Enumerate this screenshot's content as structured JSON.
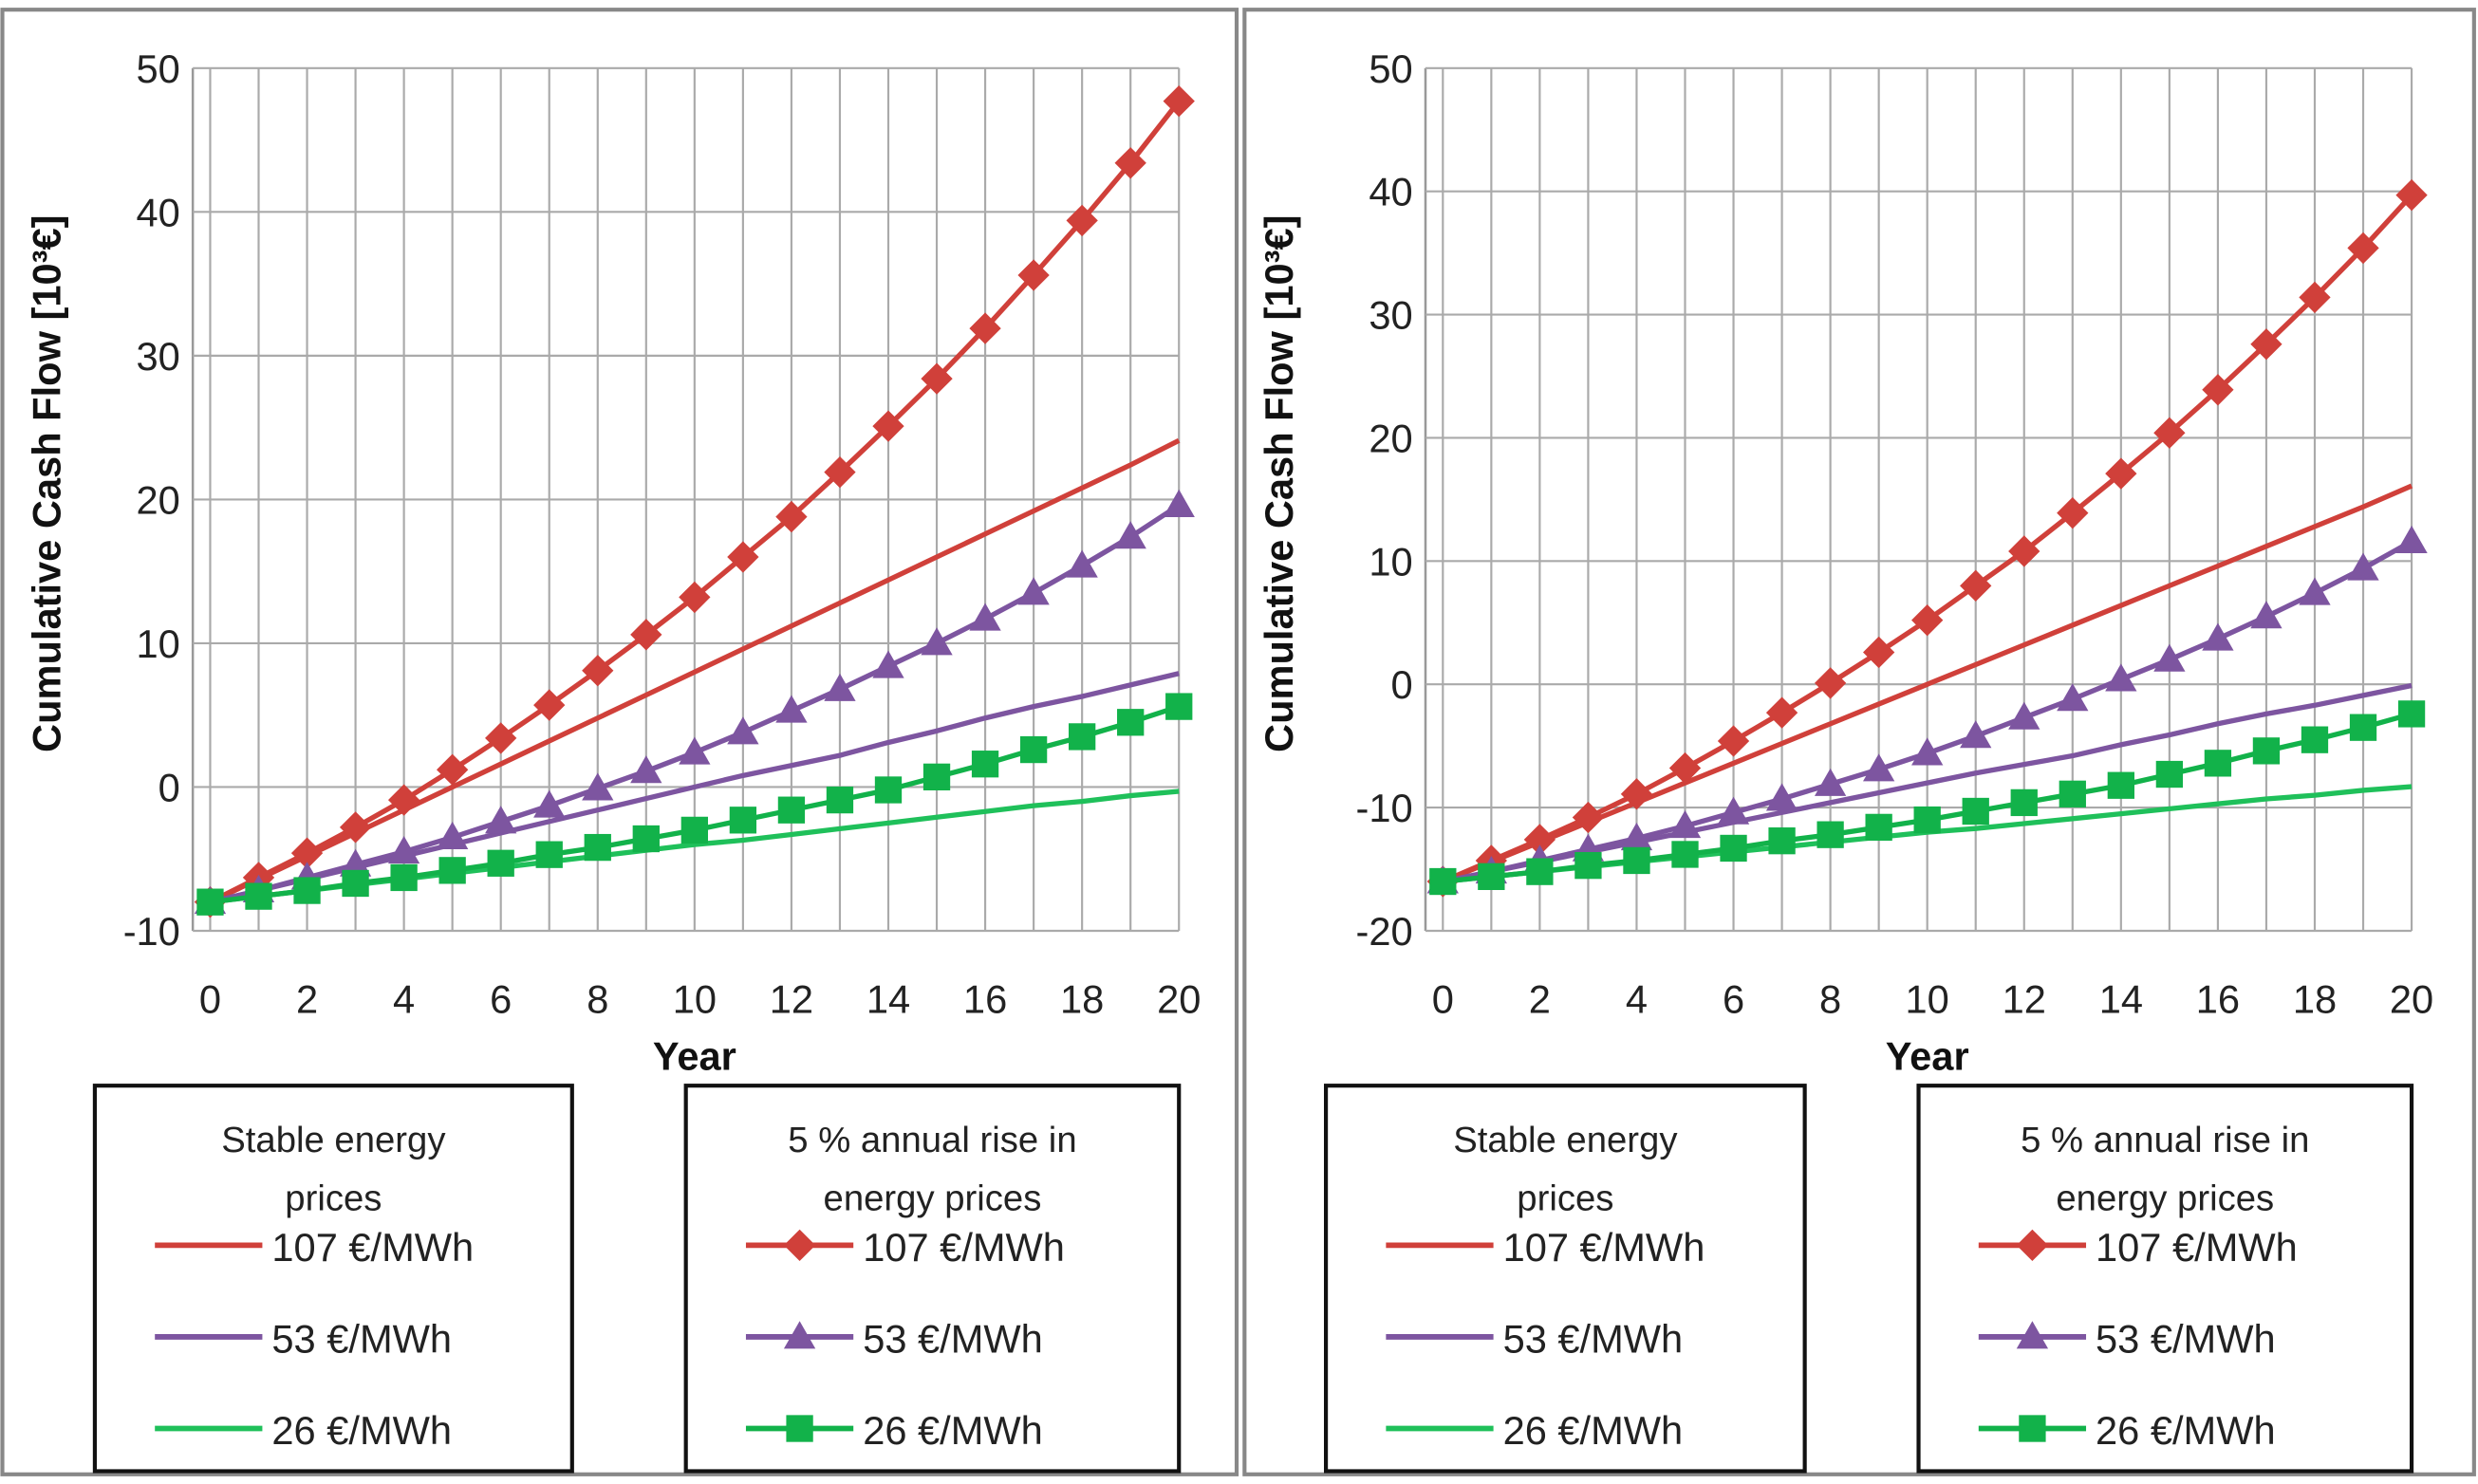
{
  "chart_data": [
    {
      "type": "line",
      "xlabel": "Year",
      "ylabel": "Cumulative Cash Flow [10³€]",
      "xlim": [
        0,
        20
      ],
      "ylim": [
        -10,
        50
      ],
      "xticks": [
        "0",
        "2",
        "4",
        "6",
        "8",
        "10",
        "12",
        "14",
        "16",
        "18",
        "20"
      ],
      "yticks": [
        "-10",
        "0",
        "10",
        "20",
        "30",
        "40",
        "50"
      ],
      "ytick_values": [
        -10,
        0,
        10,
        20,
        30,
        40,
        50
      ],
      "grid": true,
      "x": [
        0,
        1,
        2,
        3,
        4,
        5,
        6,
        7,
        8,
        9,
        10,
        11,
        12,
        13,
        14,
        15,
        16,
        17,
        18,
        19,
        20
      ],
      "legend_groups": [
        {
          "title_line1": "Stable energy",
          "title_line2": "prices"
        },
        {
          "title_line1": "5 % annual rise in",
          "title_line2": "energy prices"
        }
      ],
      "series": [
        {
          "name": "107 €/MWh",
          "group": 0,
          "color": "#d0403a",
          "marker": "none",
          "values": [
            -8,
            -6.4,
            -4.8,
            -3.2,
            -1.6,
            0,
            1.6,
            3.2,
            4.8,
            6.4,
            8,
            9.6,
            11.2,
            12.8,
            14.4,
            16,
            17.6,
            19.2,
            20.8,
            22.4,
            24.1
          ]
        },
        {
          "name": "53 €/MWh",
          "group": 0,
          "color": "#7d55a0",
          "marker": "none",
          "values": [
            -8,
            -7.2,
            -6.4,
            -5.6,
            -4.8,
            -4,
            -3.2,
            -2.4,
            -1.6,
            -0.8,
            0,
            0.8,
            1.5,
            2.2,
            3.1,
            3.9,
            4.8,
            5.6,
            6.3,
            7.1,
            7.9
          ]
        },
        {
          "name": "26 €/MWh",
          "group": 0,
          "color": "#1fc05a",
          "marker": "none",
          "values": [
            -8,
            -7.6,
            -7.2,
            -6.8,
            -6.4,
            -6,
            -5.6,
            -5.2,
            -4.8,
            -4.4,
            -4,
            -3.7,
            -3.3,
            -2.9,
            -2.5,
            -2.1,
            -1.7,
            -1.3,
            -1,
            -0.6,
            -0.3
          ]
        },
        {
          "name": "107 €/MWh",
          "group": 1,
          "color": "#d0403a",
          "marker": "diamond",
          "values": [
            -8,
            -6.3,
            -4.6,
            -2.8,
            -0.9,
            1.2,
            3.4,
            5.7,
            8.1,
            10.6,
            13.2,
            16,
            18.8,
            21.9,
            25.1,
            28.4,
            31.9,
            35.6,
            39.4,
            43.4,
            47.7
          ]
        },
        {
          "name": "53 €/MWh",
          "group": 1,
          "color": "#7d55a0",
          "marker": "triangle",
          "values": [
            -8,
            -7.2,
            -6.3,
            -5.4,
            -4.5,
            -3.5,
            -2.4,
            -1.3,
            -0.1,
            1.1,
            2.4,
            3.8,
            5.3,
            6.8,
            8.4,
            10,
            11.7,
            13.5,
            15.4,
            17.4,
            19.6
          ]
        },
        {
          "name": "26 €/MWh",
          "group": 1,
          "color": "#12b24a",
          "marker": "square",
          "values": [
            -8,
            -7.6,
            -7.2,
            -6.7,
            -6.3,
            -5.8,
            -5.3,
            -4.7,
            -4.2,
            -3.6,
            -3,
            -2.3,
            -1.6,
            -0.9,
            -0.2,
            0.7,
            1.6,
            2.6,
            3.5,
            4.5,
            5.6
          ]
        }
      ]
    },
    {
      "type": "line",
      "xlabel": "Year",
      "ylabel": "Cumulative Cash Flow [10³€]",
      "xlim": [
        0,
        20
      ],
      "ylim": [
        -20,
        50
      ],
      "xticks": [
        "0",
        "2",
        "4",
        "6",
        "8",
        "10",
        "12",
        "14",
        "16",
        "18",
        "20"
      ],
      "yticks": [
        "-20",
        "-10",
        "0",
        "10",
        "20",
        "30",
        "40",
        "50"
      ],
      "ytick_values": [
        -20,
        -10,
        0,
        10,
        20,
        30,
        40,
        50
      ],
      "grid": true,
      "x": [
        0,
        1,
        2,
        3,
        4,
        5,
        6,
        7,
        8,
        9,
        10,
        11,
        12,
        13,
        14,
        15,
        16,
        17,
        18,
        19,
        20
      ],
      "legend_groups": [
        {
          "title_line1": "Stable energy",
          "title_line2": "prices"
        },
        {
          "title_line1": "5 % annual rise in",
          "title_line2": "energy prices"
        }
      ],
      "series": [
        {
          "name": "107 €/MWh",
          "group": 0,
          "color": "#d0403a",
          "marker": "none",
          "values": [
            -16,
            -14.4,
            -12.8,
            -11.2,
            -9.6,
            -8,
            -6.4,
            -4.8,
            -3.2,
            -1.6,
            0,
            1.6,
            3.2,
            4.8,
            6.4,
            8,
            9.6,
            11.2,
            12.8,
            14.4,
            16.1
          ]
        },
        {
          "name": "53 €/MWh",
          "group": 0,
          "color": "#7d55a0",
          "marker": "none",
          "values": [
            -16,
            -15.2,
            -14.4,
            -13.6,
            -12.8,
            -12,
            -11.2,
            -10.4,
            -9.6,
            -8.8,
            -8,
            -7.2,
            -6.5,
            -5.8,
            -4.9,
            -4.1,
            -3.2,
            -2.4,
            -1.7,
            -0.9,
            -0.1
          ]
        },
        {
          "name": "26 €/MWh",
          "group": 0,
          "color": "#1fc05a",
          "marker": "none",
          "values": [
            -16,
            -15.6,
            -15.2,
            -14.8,
            -14.4,
            -14,
            -13.6,
            -13.2,
            -12.8,
            -12.4,
            -12,
            -11.7,
            -11.3,
            -10.9,
            -10.5,
            -10.1,
            -9.7,
            -9.3,
            -9,
            -8.6,
            -8.3
          ]
        },
        {
          "name": "107 €/MWh",
          "group": 1,
          "color": "#d0403a",
          "marker": "diamond",
          "values": [
            -16,
            -14.3,
            -12.6,
            -10.8,
            -8.9,
            -6.8,
            -4.6,
            -2.3,
            0.1,
            2.6,
            5.2,
            8,
            10.8,
            13.9,
            17.1,
            20.4,
            23.9,
            27.6,
            31.4,
            35.4,
            39.7
          ]
        },
        {
          "name": "53 €/MWh",
          "group": 1,
          "color": "#7d55a0",
          "marker": "triangle",
          "values": [
            -16,
            -15.2,
            -14.3,
            -13.4,
            -12.5,
            -11.5,
            -10.4,
            -9.3,
            -8.1,
            -6.9,
            -5.6,
            -4.2,
            -2.7,
            -1.2,
            0.4,
            2,
            3.7,
            5.5,
            7.4,
            9.4,
            11.6
          ]
        },
        {
          "name": "26 €/MWh",
          "group": 1,
          "color": "#12b24a",
          "marker": "square",
          "values": [
            -16,
            -15.6,
            -15.2,
            -14.7,
            -14.3,
            -13.8,
            -13.3,
            -12.7,
            -12.2,
            -11.6,
            -11,
            -10.3,
            -9.6,
            -8.9,
            -8.2,
            -7.3,
            -6.4,
            -5.4,
            -4.5,
            -3.5,
            -2.4
          ]
        }
      ]
    }
  ]
}
